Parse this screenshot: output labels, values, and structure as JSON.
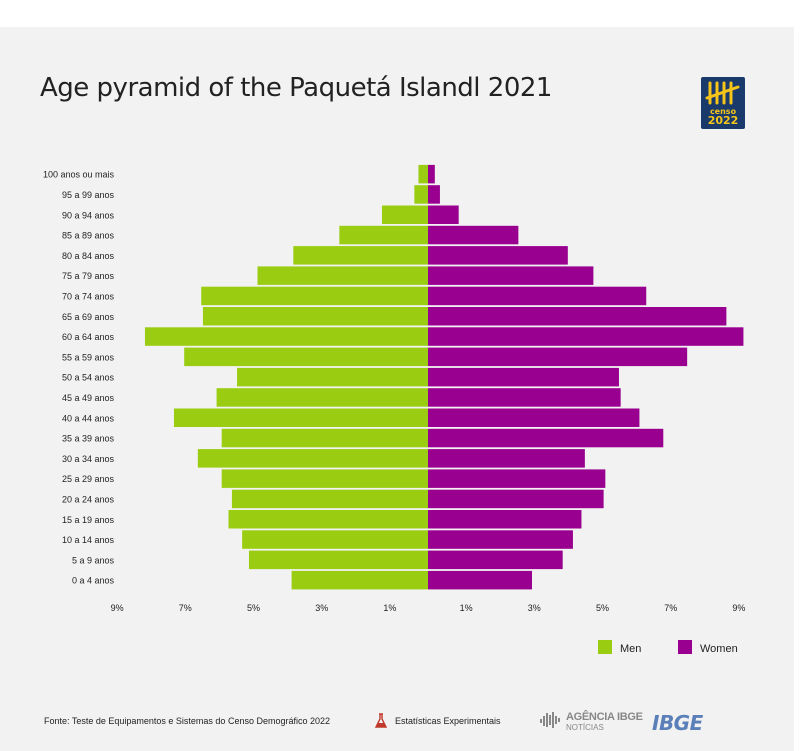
{
  "title": "Age pyramid of the Paquetá Islandl 2021",
  "logo": {
    "line1": "censo",
    "line2": "2022"
  },
  "colors": {
    "men": "#9acd12",
    "women": "#99008f",
    "background": "#f2f2f2"
  },
  "legend": {
    "men": "Men",
    "women": "Women"
  },
  "footer": {
    "source": "Fonte: Teste de Equipamentos e Sistemas do Censo Demográfico 2022",
    "experimental": "Estatísticas Experimentais",
    "agencia_line1": "AGÊNCIA IBGE",
    "agencia_line2": "NOTÍCIAS",
    "ibge": "IBGE"
  },
  "chart_data": {
    "type": "bar",
    "orientation": "horizontal-pyramid",
    "title": "Age pyramid of the Paquetá Islandl 2021",
    "categories": [
      "0 a 4 anos",
      "5 a 9 anos",
      "10 a 14 anos",
      "15 a 19 anos",
      "20 a 24 anos",
      "25 a 29 anos",
      "30 a 34 anos",
      "35 a 39 anos",
      "40 a 44 anos",
      "45 a 49 anos",
      "50 a 54 anos",
      "55 a 59 anos",
      "60 a 64 anos",
      "65 a 69 anos",
      "70 a 74 anos",
      "75 a 79 anos",
      "80 a 84 anos",
      "85 a 89 anos",
      "90 a 94 anos",
      "95 a 99 anos",
      "100 anos ou mais"
    ],
    "series": [
      {
        "name": "Men",
        "side": "left",
        "values": [
          4.0,
          5.25,
          5.45,
          5.85,
          5.75,
          6.05,
          6.75,
          6.05,
          7.45,
          6.2,
          5.6,
          7.15,
          8.3,
          6.6,
          6.65,
          5.0,
          3.95,
          2.6,
          1.35,
          0.4,
          0.28
        ]
      },
      {
        "name": "Women",
        "side": "right",
        "values": [
          3.05,
          3.95,
          4.25,
          4.5,
          5.15,
          5.2,
          4.6,
          6.9,
          6.2,
          5.65,
          5.6,
          7.6,
          9.25,
          8.75,
          6.4,
          4.85,
          4.1,
          2.65,
          0.9,
          0.35,
          0.2
        ]
      }
    ],
    "x_ticks_left": [
      "9%",
      "7%",
      "5%",
      "3%",
      "1%"
    ],
    "x_ticks_right": [
      "1%",
      "3%",
      "5%",
      "7%",
      "9%"
    ],
    "xlim": [
      -9,
      9
    ],
    "grid": false,
    "legend_position": "bottom-right"
  }
}
